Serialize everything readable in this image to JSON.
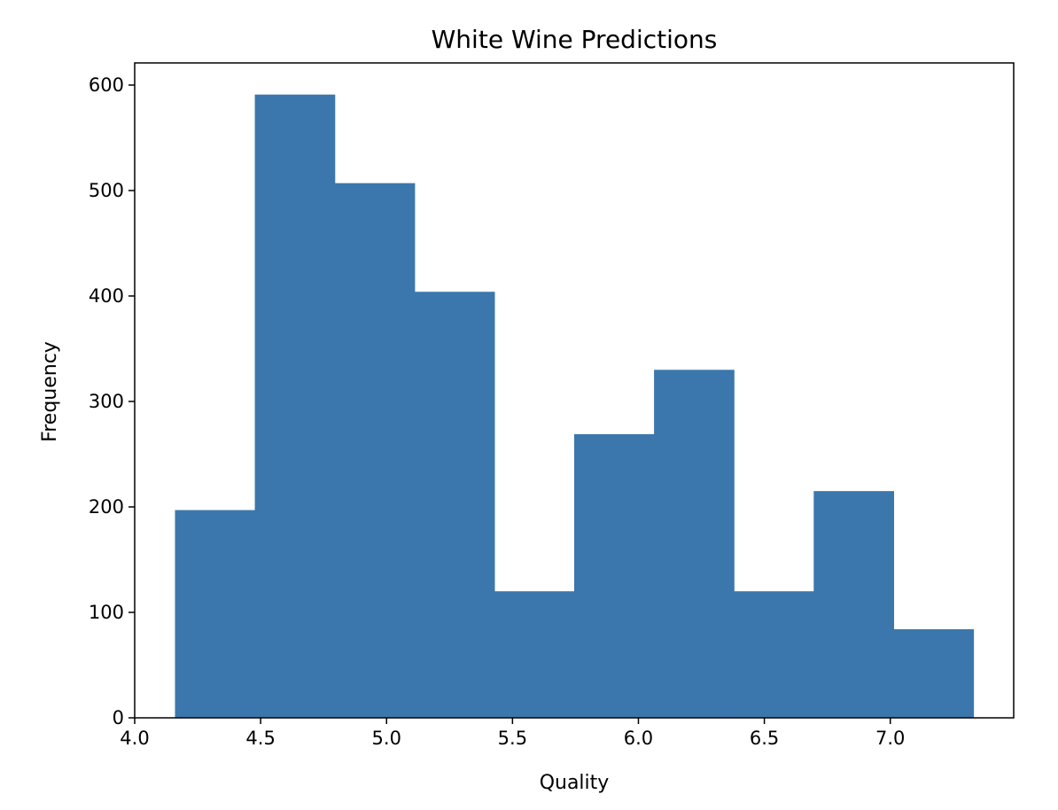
{
  "chart_data": {
    "type": "bar",
    "title": "White Wine Predictions",
    "xlabel": "Quality",
    "ylabel": "Frequency",
    "bins": [
      {
        "x0": 4.16,
        "x1": 4.477,
        "count": 197
      },
      {
        "x0": 4.477,
        "x1": 4.794,
        "count": 591
      },
      {
        "x0": 4.794,
        "x1": 5.111,
        "count": 507
      },
      {
        "x0": 5.111,
        "x1": 5.428,
        "count": 404
      },
      {
        "x0": 5.428,
        "x1": 5.745,
        "count": 120
      },
      {
        "x0": 5.745,
        "x1": 6.062,
        "count": 269
      },
      {
        "x0": 6.062,
        "x1": 6.379,
        "count": 330
      },
      {
        "x0": 6.379,
        "x1": 6.696,
        "count": 120
      },
      {
        "x0": 6.696,
        "x1": 7.013,
        "count": 215
      },
      {
        "x0": 7.013,
        "x1": 7.33,
        "count": 84
      }
    ],
    "xlim": [
      4.0,
      7.49
    ],
    "ylim": [
      0,
      621
    ],
    "xticks": [
      "4.0",
      "4.5",
      "5.0",
      "5.5",
      "6.0",
      "6.5",
      "7.0"
    ],
    "yticks": [
      "0",
      "100",
      "200",
      "300",
      "400",
      "500",
      "600"
    ],
    "bar_color": "#3b77ad",
    "grid": false,
    "legend": "none"
  }
}
